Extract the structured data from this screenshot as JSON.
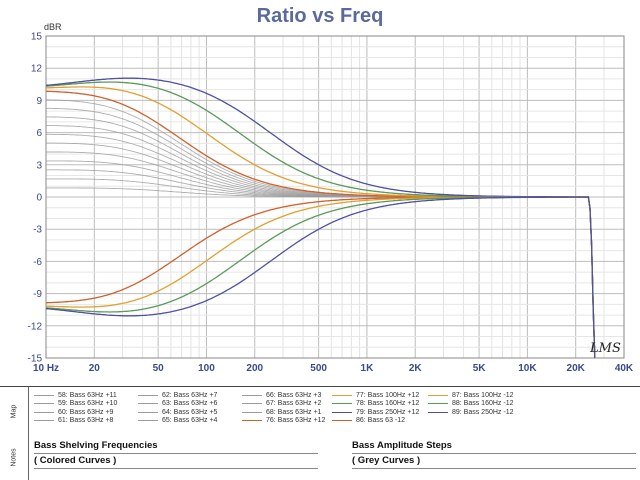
{
  "chart_data": {
    "type": "line",
    "title": "Ratio vs Freq",
    "ylabel": "dBR",
    "xscale": "log",
    "xlim": [
      10,
      40000
    ],
    "ylim": [
      -15,
      15
    ],
    "grid": true,
    "x_ticks": [
      {
        "value": 10,
        "label": "10 Hz"
      },
      {
        "value": 20,
        "label": "20"
      },
      {
        "value": 50,
        "label": "50"
      },
      {
        "value": 100,
        "label": "100"
      },
      {
        "value": 200,
        "label": "200"
      },
      {
        "value": 500,
        "label": "500"
      },
      {
        "value": 1000,
        "label": "1K"
      },
      {
        "value": 2000,
        "label": "2K"
      },
      {
        "value": 5000,
        "label": "5K"
      },
      {
        "value": 10000,
        "label": "10K"
      },
      {
        "value": 20000,
        "label": "20K"
      },
      {
        "value": 40000,
        "label": "40K"
      }
    ],
    "y_ticks": [
      {
        "value": 15,
        "label": "15"
      },
      {
        "value": 12,
        "label": "12"
      },
      {
        "value": 9,
        "label": "9"
      },
      {
        "value": 6,
        "label": "6"
      },
      {
        "value": 3,
        "label": "3"
      },
      {
        "value": 0,
        "label": "0"
      },
      {
        "value": -3,
        "label": "-3"
      },
      {
        "value": -6,
        "label": "-6"
      },
      {
        "value": -9,
        "label": "-9"
      },
      {
        "value": -12,
        "label": "-12"
      },
      {
        "value": -15,
        "label": "-15"
      }
    ],
    "rolloff_hz": 24000,
    "series": [
      {
        "name": "58: Bass 63Hz +11",
        "color": "#9a9a9a",
        "gain": 11,
        "fc": 63
      },
      {
        "name": "59: Bass 63Hz +10",
        "color": "#9a9a9a",
        "gain": 10,
        "fc": 63
      },
      {
        "name": "60: Bass 63Hz +9",
        "color": "#9a9a9a",
        "gain": 9,
        "fc": 63
      },
      {
        "name": "61: Bass 63Hz +8",
        "color": "#9a9a9a",
        "gain": 8,
        "fc": 63
      },
      {
        "name": "62: Bass 63Hz +7",
        "color": "#9a9a9a",
        "gain": 7,
        "fc": 63
      },
      {
        "name": "63: Bass 63Hz +6",
        "color": "#9a9a9a",
        "gain": 6,
        "fc": 63
      },
      {
        "name": "64: Bass 63Hz +5",
        "color": "#9a9a9a",
        "gain": 5,
        "fc": 63
      },
      {
        "name": "65: Bass 63Hz +4",
        "color": "#9a9a9a",
        "gain": 4,
        "fc": 63
      },
      {
        "name": "66: Bass 63Hz +3",
        "color": "#9a9a9a",
        "gain": 3,
        "fc": 63
      },
      {
        "name": "67: Bass 63Hz +2",
        "color": "#9a9a9a",
        "gain": 2,
        "fc": 63
      },
      {
        "name": "68: Bass 63Hz +1",
        "color": "#9a9a9a",
        "gain": 1,
        "fc": 63
      },
      {
        "name": "76: Bass 63Hz +12",
        "color": "#d2602a",
        "gain": 12,
        "fc": 63
      },
      {
        "name": "77: Bass 100Hz +12",
        "color": "#e0a030",
        "gain": 12,
        "fc": 100
      },
      {
        "name": "78: Bass 160Hz +12",
        "color": "#5a9a5a",
        "gain": 12,
        "fc": 160
      },
      {
        "name": "79: Bass 250Hz +12",
        "color": "#5050a0",
        "gain": 12,
        "fc": 250
      },
      {
        "name": "86: Bass 63 -12",
        "color": "#d2602a",
        "gain": -12,
        "fc": 63
      },
      {
        "name": "87: Bass 100Hz -12",
        "color": "#e0a030",
        "gain": -12,
        "fc": 100
      },
      {
        "name": "88: Bass 160Hz -12",
        "color": "#5a9a5a",
        "gain": -12,
        "fc": 160
      },
      {
        "name": "89: Bass 250Hz -12",
        "color": "#5050a0",
        "gain": -12,
        "fc": 250
      }
    ]
  },
  "legend": {
    "tab_label": "Map",
    "columns": [
      [
        {
          "label": "58: Bass 63Hz +11",
          "color": "#9a9a9a"
        },
        {
          "label": "59: Bass 63Hz +10",
          "color": "#9a9a9a"
        },
        {
          "label": "60: Bass 63Hz +9",
          "color": "#9a9a9a"
        },
        {
          "label": "61: Bass 63Hz +8",
          "color": "#9a9a9a"
        }
      ],
      [
        {
          "label": "62: Bass 63Hz +7",
          "color": "#9a9a9a"
        },
        {
          "label": "63: Bass 63Hz +6",
          "color": "#9a9a9a"
        },
        {
          "label": "64: Bass 63Hz +5",
          "color": "#9a9a9a"
        },
        {
          "label": "65: Bass 63Hz +4",
          "color": "#9a9a9a"
        }
      ],
      [
        {
          "label": "66: Bass 63Hz +3",
          "color": "#9a9a9a"
        },
        {
          "label": "67: Bass 63Hz +2",
          "color": "#9a9a9a"
        },
        {
          "label": "68: Bass 63Hz +1",
          "color": "#9a9a9a"
        },
        {
          "label": "76: Bass 63Hz +12",
          "color": "#d2602a"
        }
      ],
      [
        {
          "label": "77: Bass 100Hz +12",
          "color": "#e0a030"
        },
        {
          "label": "78: Bass 160Hz +12",
          "color": "#5a9a5a"
        },
        {
          "label": "79: Bass 250Hz +12",
          "color": "#5050a0"
        },
        {
          "label": "86: Bass 63 -12",
          "color": "#d2602a"
        }
      ],
      [
        {
          "label": "87: Bass 100Hz -12",
          "color": "#e0a030"
        },
        {
          "label": "88: Bass 160Hz -12",
          "color": "#5a9a5a"
        },
        {
          "label": "89: Bass 250Hz -12",
          "color": "#5050a0"
        }
      ]
    ]
  },
  "notes": {
    "tab_label": "Notes",
    "left_title": "Bass Shelving Frequencies",
    "left_sub": "( Colored Curves )",
    "right_title": "Bass Amplitude Steps",
    "right_sub": "( Grey Curves )"
  },
  "watermark": "LMS"
}
